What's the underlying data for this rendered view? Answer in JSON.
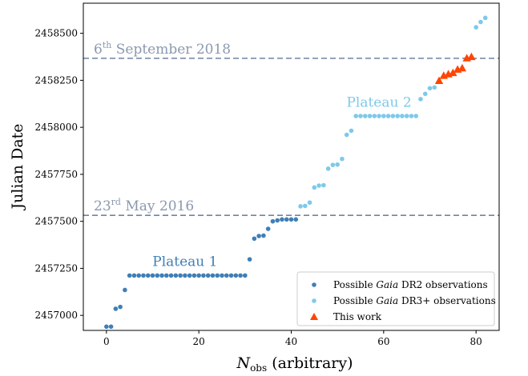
{
  "chart_data": {
    "type": "scatter",
    "xlabel_main": "N",
    "xlabel_sub": "obs",
    "xlabel_rest": " (arbitrary)",
    "ylabel": "Julian Date",
    "xlim": [
      -5,
      85
    ],
    "ylim": [
      2456920,
      2458660
    ],
    "xticks": [
      0,
      20,
      40,
      60,
      80
    ],
    "yticks": [
      2457000,
      2457250,
      2457500,
      2457750,
      2458000,
      2458250,
      2458500
    ],
    "colors": {
      "dr2": "#3f7fb5",
      "dr3": "#7ec9ea",
      "this_work": "#ff4500",
      "hline": "#6f84a2",
      "hline_label_top": "#8b99ae",
      "hline_label_bottom": "#8b99ae",
      "plateau1": "#3f7fb5",
      "plateau2": "#7ec9ea"
    },
    "hlines": [
      {
        "y": 2458367,
        "label_num": "6",
        "label_sup": "th",
        "label_rest": " September 2018"
      },
      {
        "y": 2457532,
        "label_num": "23",
        "label_sup": "rd",
        "label_rest": " May 2016"
      }
    ],
    "annotations": [
      {
        "text": "Plateau 1",
        "x": 17,
        "y": 2457262,
        "color_key": "plateau1"
      },
      {
        "text": "Plateau 2",
        "x": 59,
        "y": 2458110,
        "color_key": "plateau2"
      }
    ],
    "series": [
      {
        "key": "dr2",
        "legend_pre": "Possible ",
        "legend_italic": "Gaia",
        "legend_post": " DR2 observations",
        "marker": "circle",
        "points": [
          [
            0,
            2456940
          ],
          [
            1,
            2456940
          ],
          [
            2,
            2457035
          ],
          [
            3,
            2457045
          ],
          [
            4,
            2457135
          ],
          [
            5,
            2457212
          ],
          [
            6,
            2457212
          ],
          [
            7,
            2457212
          ],
          [
            8,
            2457212
          ],
          [
            9,
            2457212
          ],
          [
            10,
            2457212
          ],
          [
            11,
            2457212
          ],
          [
            12,
            2457212
          ],
          [
            13,
            2457212
          ],
          [
            14,
            2457212
          ],
          [
            15,
            2457212
          ],
          [
            16,
            2457212
          ],
          [
            17,
            2457212
          ],
          [
            18,
            2457212
          ],
          [
            19,
            2457212
          ],
          [
            20,
            2457212
          ],
          [
            21,
            2457212
          ],
          [
            22,
            2457212
          ],
          [
            23,
            2457212
          ],
          [
            24,
            2457212
          ],
          [
            25,
            2457212
          ],
          [
            26,
            2457212
          ],
          [
            27,
            2457212
          ],
          [
            28,
            2457212
          ],
          [
            29,
            2457212
          ],
          [
            30,
            2457212
          ],
          [
            31,
            2457298
          ],
          [
            32,
            2457408
          ],
          [
            33,
            2457422
          ],
          [
            34,
            2457424
          ],
          [
            35,
            2457460
          ],
          [
            36,
            2457500
          ],
          [
            37,
            2457505
          ],
          [
            38,
            2457510
          ],
          [
            39,
            2457510
          ],
          [
            40,
            2457510
          ],
          [
            41,
            2457510
          ]
        ]
      },
      {
        "key": "dr3",
        "legend_pre": "Possible ",
        "legend_italic": "Gaia",
        "legend_post": " DR3+ observations",
        "marker": "circle",
        "points": [
          [
            42,
            2457580
          ],
          [
            43,
            2457582
          ],
          [
            44,
            2457600
          ],
          [
            45,
            2457680
          ],
          [
            46,
            2457690
          ],
          [
            47,
            2457692
          ],
          [
            48,
            2457780
          ],
          [
            49,
            2457800
          ],
          [
            50,
            2457802
          ],
          [
            51,
            2457832
          ],
          [
            52,
            2457960
          ],
          [
            53,
            2457982
          ],
          [
            54,
            2458060
          ],
          [
            55,
            2458060
          ],
          [
            56,
            2458060
          ],
          [
            57,
            2458060
          ],
          [
            58,
            2458060
          ],
          [
            59,
            2458060
          ],
          [
            60,
            2458060
          ],
          [
            61,
            2458060
          ],
          [
            62,
            2458060
          ],
          [
            63,
            2458060
          ],
          [
            64,
            2458060
          ],
          [
            65,
            2458060
          ],
          [
            66,
            2458060
          ],
          [
            67,
            2458060
          ],
          [
            68,
            2458150
          ],
          [
            69,
            2458178
          ],
          [
            70,
            2458208
          ],
          [
            71,
            2458212
          ],
          [
            80,
            2458532
          ],
          [
            81,
            2458560
          ],
          [
            82,
            2458582
          ]
        ]
      },
      {
        "key": "this_work",
        "legend_pre": "",
        "legend_italic": "",
        "legend_post": "This work",
        "marker": "triangle",
        "points": [
          [
            72,
            2458248
          ],
          [
            73,
            2458275
          ],
          [
            74,
            2458283
          ],
          [
            75,
            2458290
          ],
          [
            76,
            2458308
          ],
          [
            77,
            2458315
          ],
          [
            78,
            2458368
          ],
          [
            79,
            2458375
          ]
        ]
      }
    ]
  }
}
